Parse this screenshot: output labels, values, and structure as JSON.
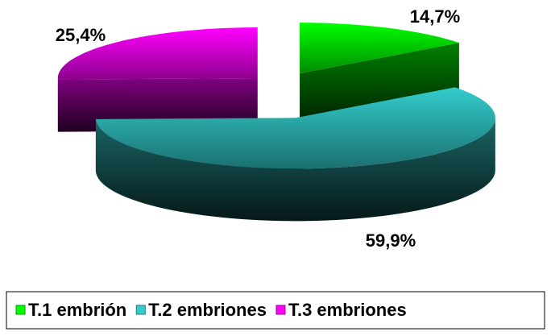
{
  "chart_data": {
    "type": "pie3d",
    "categories": [
      "T.1 embrión",
      "T.2 embriones",
      "T.3 embriones"
    ],
    "values": [
      14.7,
      59.9,
      25.4
    ],
    "value_labels": [
      "14,7%",
      "59,9%",
      "25,4%"
    ],
    "colors": [
      "#00ff00",
      "#33cccc",
      "#ff00ff"
    ],
    "legend": "bottom"
  }
}
